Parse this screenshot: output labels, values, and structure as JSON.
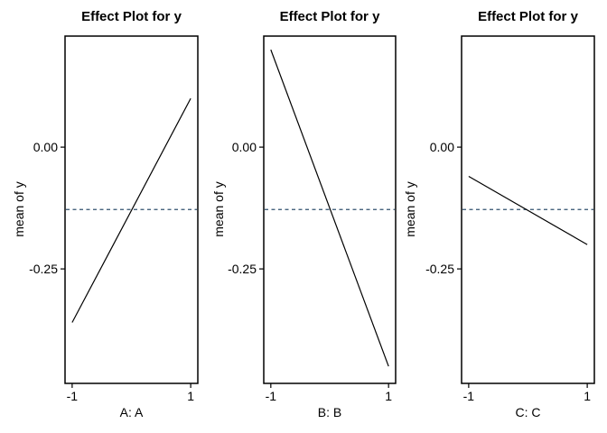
{
  "figure": {
    "background": "#ffffff",
    "text_color": "#000000"
  },
  "chart_data": [
    {
      "type": "line",
      "title": "Effect Plot for y",
      "xlabel": "A: A",
      "ylabel": "mean of y",
      "x": [
        -1,
        1
      ],
      "values": [
        -0.36,
        0.1
      ],
      "grand_mean": -0.128,
      "grand_mean_style": "dashed",
      "xticks": [
        -1,
        1
      ],
      "xtick_labels": [
        "-1",
        "1"
      ],
      "yticks": [
        0,
        -0.25
      ],
      "ytick_labels": [
        "0.00",
        "-0.25"
      ],
      "xlim": [
        -1.12,
        1.12
      ],
      "ylim": [
        -0.485,
        0.228
      ],
      "grid": false,
      "legend": "none",
      "line_color": "#000000",
      "mean_line_color": "#31506e"
    },
    {
      "type": "line",
      "title": "Effect Plot for y",
      "xlabel": "B: B",
      "ylabel": "mean of y",
      "x": [
        -1,
        1
      ],
      "values": [
        0.2,
        -0.45
      ],
      "grand_mean": -0.128,
      "grand_mean_style": "dashed",
      "xticks": [
        -1,
        1
      ],
      "xtick_labels": [
        "-1",
        "1"
      ],
      "yticks": [
        0,
        -0.25
      ],
      "ytick_labels": [
        "0.00",
        "-0.25"
      ],
      "xlim": [
        -1.12,
        1.12
      ],
      "ylim": [
        -0.485,
        0.228
      ],
      "grid": false,
      "legend": "none",
      "line_color": "#000000",
      "mean_line_color": "#31506e"
    },
    {
      "type": "line",
      "title": "Effect Plot for y",
      "xlabel": "C: C",
      "ylabel": "mean of y",
      "x": [
        -1,
        1
      ],
      "values": [
        -0.06,
        -0.2
      ],
      "grand_mean": -0.128,
      "grand_mean_style": "dashed",
      "xticks": [
        -1,
        1
      ],
      "xtick_labels": [
        "-1",
        "1"
      ],
      "yticks": [
        0,
        -0.25
      ],
      "ytick_labels": [
        "0.00",
        "-0.25"
      ],
      "xlim": [
        -1.12,
        1.12
      ],
      "ylim": [
        -0.485,
        0.228
      ],
      "grid": false,
      "legend": "none",
      "line_color": "#000000",
      "mean_line_color": "#31506e"
    }
  ]
}
